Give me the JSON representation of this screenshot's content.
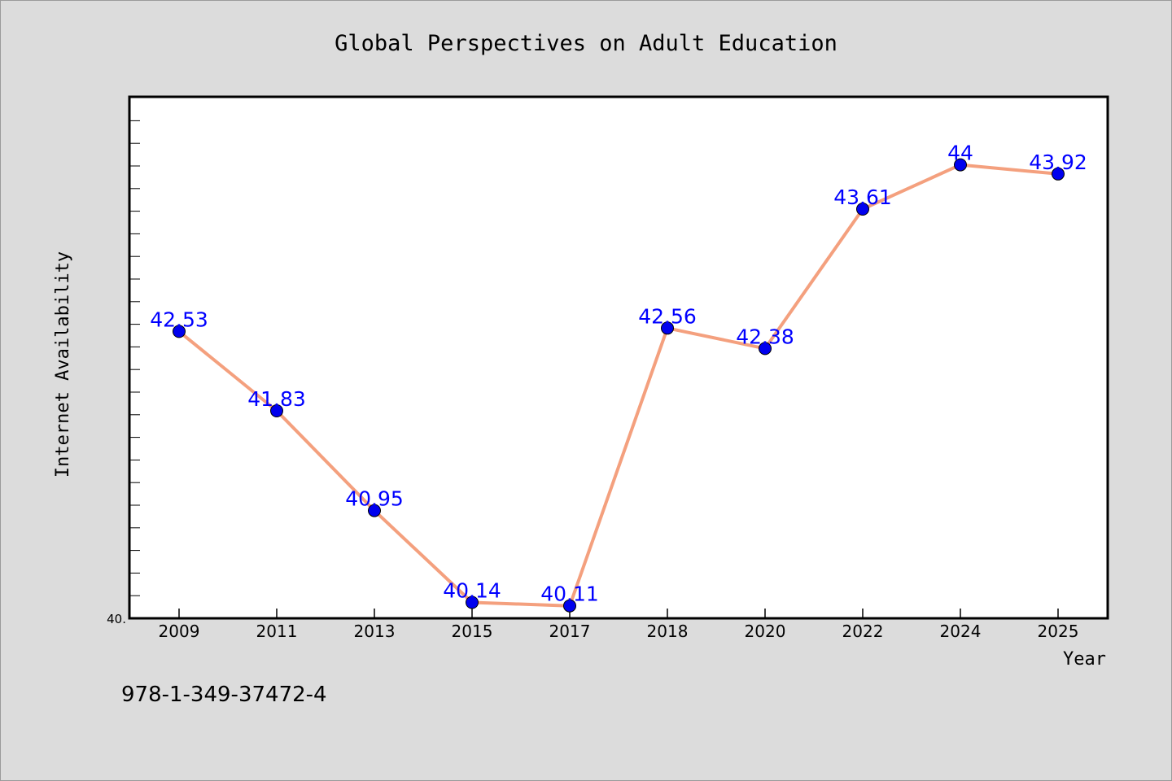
{
  "chart_data": {
    "type": "line",
    "title": "Global Perspectives on Adult Education",
    "xlabel": "Year",
    "ylabel": "Internet Availability",
    "categories": [
      "2009",
      "2011",
      "2013",
      "2015",
      "2017",
      "2018",
      "2020",
      "2022",
      "2024",
      "2025"
    ],
    "series": [
      {
        "values": [
          42.53,
          41.83,
          40.95,
          40.14,
          40.11,
          42.56,
          42.38,
          43.61,
          44,
          43.92
        ],
        "data_labels": [
          "42.53",
          "41.83",
          "40.95",
          "40.14",
          "40.11",
          "42.56",
          "42.38",
          "43.61",
          "44",
          "43.92"
        ],
        "line_color": "#f4a07e",
        "marker_color": "#0000ee"
      }
    ],
    "ytick_label": "40.",
    "ylim": [
      40.0,
      44.6
    ],
    "grid": false,
    "legend": "none"
  },
  "footer_text": "978-1-349-37472-4",
  "colors": {
    "background": "#dcdcdc",
    "plot_background": "#ffffff",
    "data_label": "#0000ff"
  }
}
